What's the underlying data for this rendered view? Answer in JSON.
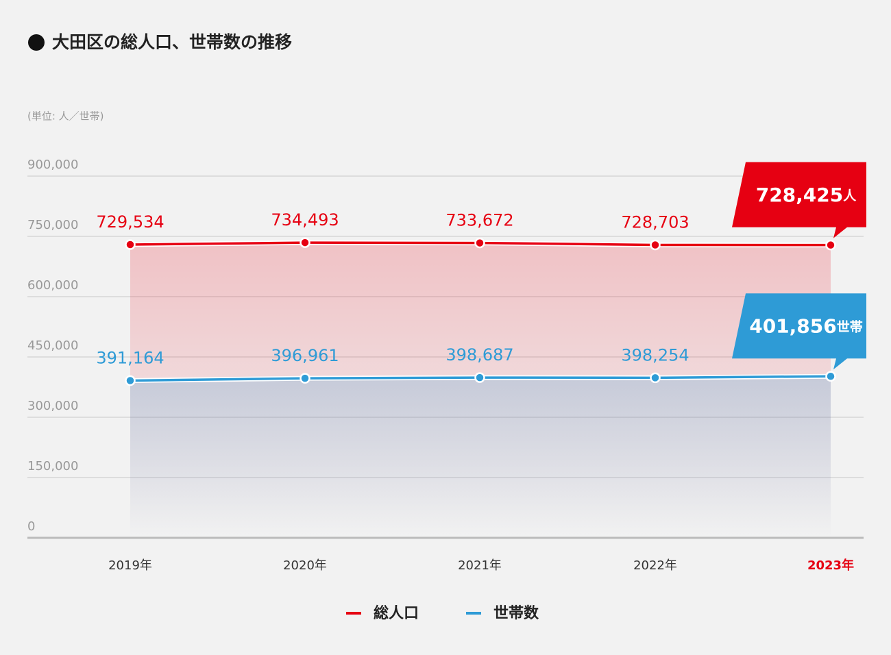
{
  "chart_data": {
    "type": "line",
    "title": "大田区の総人口、世帯数の推移",
    "unit_note": "(単位: 人／世帯)",
    "categories": [
      "2019年",
      "2020年",
      "2021年",
      "2022年",
      "2023年"
    ],
    "series": [
      {
        "name": "総人口",
        "color": "#e60012",
        "unit": "人",
        "values": [
          729534,
          734493,
          733672,
          728703,
          728425
        ],
        "value_labels": [
          "729,534",
          "734,493",
          "733,672",
          "728,703",
          "728,425"
        ]
      },
      {
        "name": "世帯数",
        "color": "#2e9bd6",
        "unit": "世帯",
        "values": [
          391164,
          396961,
          398687,
          398254,
          401856
        ],
        "value_labels": [
          "391,164",
          "396,961",
          "398,687",
          "398,254",
          "401,856"
        ]
      }
    ],
    "ylim": [
      0,
      900000
    ],
    "yticks": [
      0,
      {
        "value": 150000,
        "label": "150,000"
      },
      {
        "value": 300000,
        "label": "300,000"
      },
      {
        "value": 450000,
        "label": "450,000"
      },
      {
        "value": 600000,
        "label": "600,000"
      },
      {
        "value": 750000,
        "label": "750,000"
      },
      {
        "value": 900000,
        "label": "900,000"
      }
    ],
    "grid": true
  }
}
